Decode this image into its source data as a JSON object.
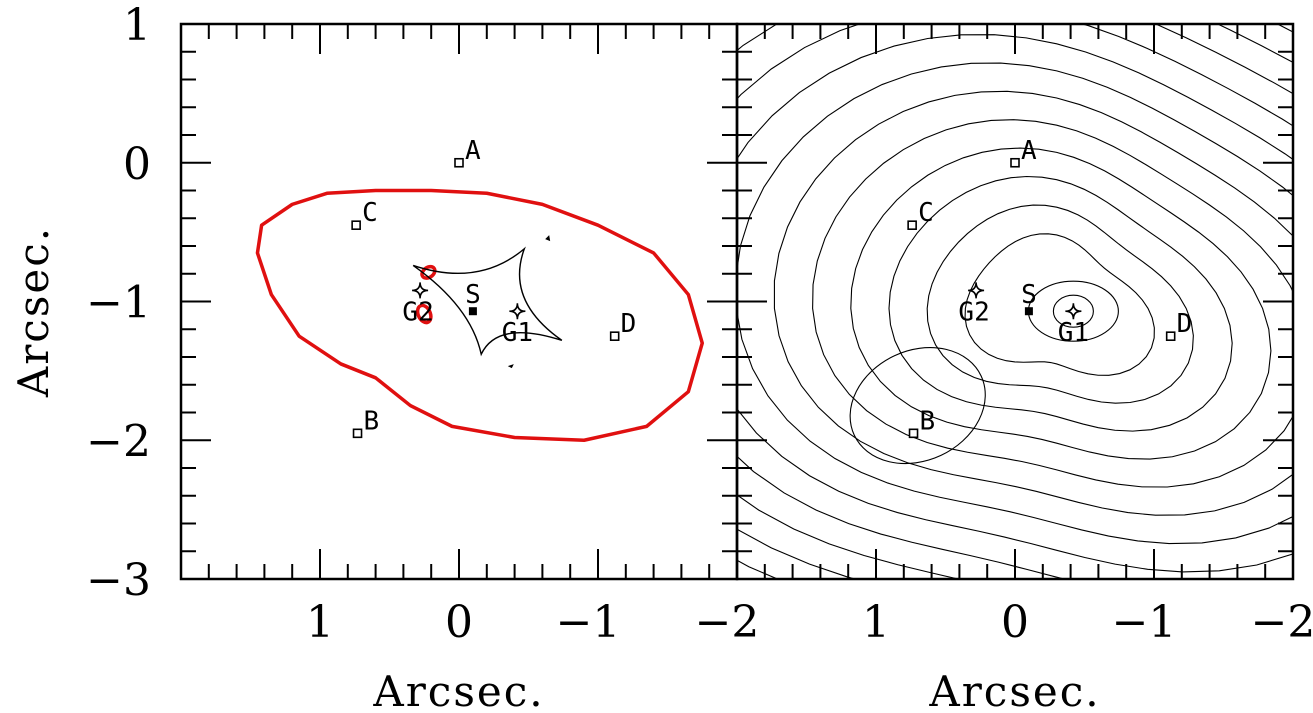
{
  "chart_data": {
    "type": "scatter",
    "panels": [
      {
        "name": "left",
        "xlabel": "Arcsec.",
        "ylabel": "Arcsec.",
        "xlim": [
          2,
          -2
        ],
        "ylim": [
          -3,
          1
        ],
        "xticks": [
          1,
          0,
          -1,
          -2
        ],
        "yticks": [
          1,
          0,
          -1,
          -2,
          -3
        ],
        "xtick_labels": [
          "1",
          "0",
          "−1",
          "−2"
        ],
        "ytick_labels": [
          "1",
          "0",
          "−1",
          "−2",
          "−3"
        ],
        "points": [
          {
            "label": "A",
            "x": 0.0,
            "y": 0.0,
            "marker": "open-square"
          },
          {
            "label": "C",
            "x": 0.74,
            "y": -0.45,
            "marker": "open-square"
          },
          {
            "label": "B",
            "x": 0.73,
            "y": -1.95,
            "marker": "open-square"
          },
          {
            "label": "D",
            "x": -1.12,
            "y": -1.25,
            "marker": "open-square"
          },
          {
            "label": "S",
            "x": -0.1,
            "y": -1.07,
            "marker": "filled-square"
          },
          {
            "label": "G1",
            "x": -0.42,
            "y": -1.07,
            "marker": "star"
          },
          {
            "label": "G2",
            "x": 0.28,
            "y": -0.92,
            "marker": "star"
          }
        ],
        "critical_curve_color": "#e01010",
        "caustic_color": "#000000"
      },
      {
        "name": "right",
        "xlabel": "Arcsec.",
        "xlim": [
          2,
          -2
        ],
        "ylim": [
          -3,
          1
        ],
        "xticks": [
          1,
          0,
          -1,
          -2
        ],
        "xtick_labels": [
          "1",
          "0",
          "−1",
          "−2"
        ],
        "points": [
          {
            "label": "A",
            "x": 0.0,
            "y": 0.0,
            "marker": "open-square"
          },
          {
            "label": "C",
            "x": 0.74,
            "y": -0.45,
            "marker": "open-square"
          },
          {
            "label": "B",
            "x": 0.73,
            "y": -1.95,
            "marker": "open-square"
          },
          {
            "label": "D",
            "x": -1.12,
            "y": -1.25,
            "marker": "open-square"
          },
          {
            "label": "S",
            "x": -0.1,
            "y": -1.07,
            "marker": "filled-square"
          },
          {
            "label": "G1",
            "x": -0.42,
            "y": -1.07,
            "marker": "star"
          },
          {
            "label": "G2",
            "x": 0.28,
            "y": -0.92,
            "marker": "star"
          }
        ],
        "contour_color": "#000000"
      }
    ]
  }
}
